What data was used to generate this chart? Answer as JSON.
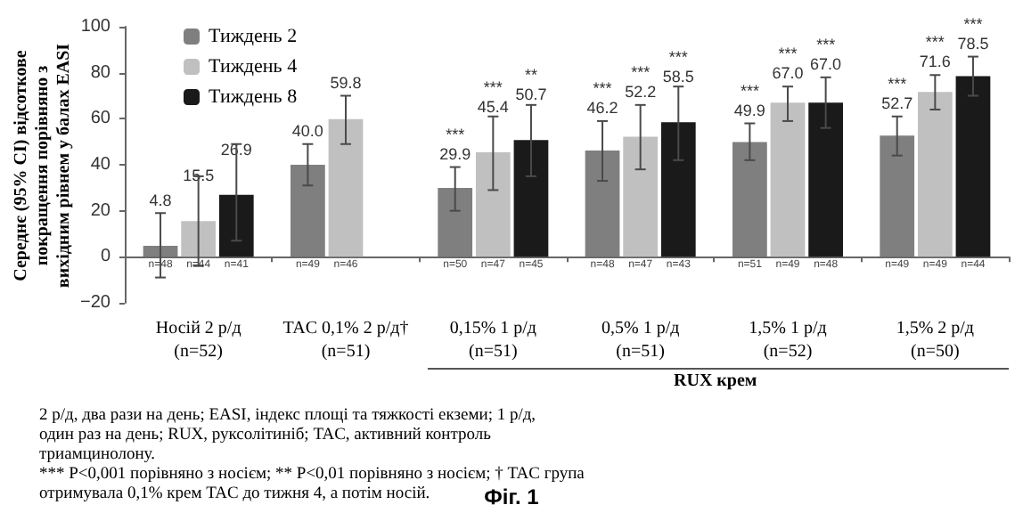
{
  "chart_data": {
    "type": "bar",
    "ylabel": "Середнє (95% CI) відсоткове покращення порівняно з вихідним рівнем у балах EASI",
    "categories": [
      "Носій 2 р/д\n(n=52)",
      "TAC 0,1% 2 р/д†\n(n=51)",
      "0,15% 1 р/д\n(n=51)",
      "0,5% 1 р/д\n(n=51)",
      "1,5% 1 р/д\n(n=52)",
      "1,5% 2 р/д\n(n=50)"
    ],
    "series": [
      {
        "name": "Тиждень 2",
        "color": "#7f7f7f",
        "values": [
          4.8,
          40.0,
          29.9,
          46.2,
          49.9,
          52.7
        ],
        "errors": [
          [
            -9,
            19
          ],
          [
            31,
            49
          ],
          [
            20,
            39
          ],
          [
            33,
            59
          ],
          [
            42,
            58
          ],
          [
            44,
            61
          ]
        ],
        "value_labels": [
          "4.8",
          "40.0",
          "***\n29.9",
          "***\n46.2",
          "***\n49.9",
          "***\n52.7"
        ]
      },
      {
        "name": "Тиждень 4",
        "color": "#c0c0c0",
        "values": [
          15.5,
          59.8,
          45.4,
          52.2,
          67.0,
          71.6
        ],
        "errors": [
          [
            -4,
            35
          ],
          [
            49,
            70
          ],
          [
            29,
            61
          ],
          [
            38,
            66
          ],
          [
            59,
            74
          ],
          [
            64,
            79
          ]
        ],
        "value_labels": [
          "15.5",
          "59.8",
          "***\n45.4",
          "***\n52.2",
          "***\n67.0",
          "***\n71.6"
        ]
      },
      {
        "name": "Тиждень 8",
        "color": "#1a1a1a",
        "values": [
          26.9,
          null,
          50.7,
          58.5,
          67.0,
          78.5
        ],
        "errors": [
          [
            7,
            49
          ],
          null,
          [
            35,
            66
          ],
          [
            42,
            74
          ],
          [
            56,
            78
          ],
          [
            70,
            87
          ]
        ],
        "value_labels": [
          "26.9",
          null,
          "**\n50.7",
          "***\n58.5",
          "***\n67.0",
          "***\n78.5"
        ]
      }
    ],
    "ylim": [
      -20,
      100
    ],
    "yticks": [
      {
        "value": -20,
        "label": "−20"
      },
      0,
      20,
      40,
      60,
      80,
      100
    ],
    "legend": "top left",
    "annotations": [
      {
        "text": "n=48",
        "x": "Носій 2 р/д\n(n=52)",
        "y": 0
      },
      {
        "text": "n=44",
        "x": "Носій 2 р/д\n(n=52)",
        "y": 0
      },
      {
        "text": "n=41",
        "x": "Носій 2 р/д\n(n=52)",
        "y": 0
      },
      {
        "text": "n=49",
        "x": "TAC 0,1% 2 р/д†\n(n=51)",
        "y": 0
      },
      {
        "text": "n=46",
        "x": "TAC 0,1% 2 р/д†\n(n=51)",
        "y": 0
      },
      {
        "text": "n=50",
        "x": "0,15% 1 р/д\n(n=51)",
        "y": 0
      },
      {
        "text": "n=47",
        "x": "0,15% 1 р/д\n(n=51)",
        "y": 0
      },
      {
        "text": "n=45",
        "x": "0,15% 1 р/д\n(n=51)",
        "y": 0
      },
      {
        "text": "n=48",
        "x": "0,5% 1 р/д\n(n=51)",
        "y": 0
      },
      {
        "text": "n=47",
        "x": "0,5% 1 р/д\n(n=51)",
        "y": 0
      },
      {
        "text": "n=43",
        "x": "0,5% 1 р/д\n(n=51)",
        "y": 0
      },
      {
        "text": "n=51",
        "x": "1,5% 1 р/д\n(n=52)",
        "y": 0
      },
      {
        "text": "n=49",
        "x": "1,5% 1 р/д\n(n=52)",
        "y": 0
      },
      {
        "text": "n=48",
        "x": "1,5% 1 р/д\n(n=52)",
        "y": 0
      },
      {
        "text": "n=49",
        "x": "1,5% 2 р/д\n(n=50)",
        "y": 0
      },
      {
        "text": "n=49",
        "x": "1,5% 2 р/д\n(n=50)",
        "y": 0
      },
      {
        "text": "n=44",
        "x": "1,5% 2 р/д\n(n=50)",
        "y": 0
      },
      "RUX крем",
      "2 р/д, два рази на день; EASI, індекс площі та тяжкості екземи; 1 р/д, один раз на день; RUX, руксолітиніб; TAC, активний контроль триамцинолону.",
      "*** P<0,001 порівняно з носієм; ** P<0,01 порівняно з носієм; † TAC група отримувала 0,1% крем TAC до тижня 4, а потім носій.",
      "Фіг. 1"
    ]
  }
}
